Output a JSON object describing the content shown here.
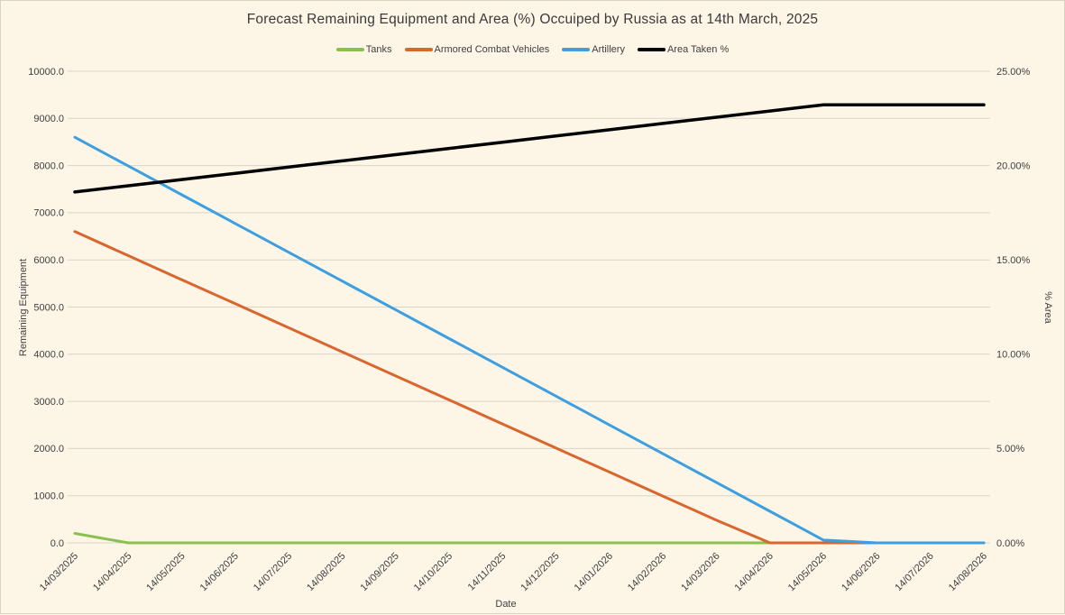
{
  "title": "Forecast Remaining Equipment and Area (%) Occuiped by Russia as at 14th March, 2025",
  "axes": {
    "left_label": "Remaining Equipment",
    "right_label": "% Area",
    "x_label": "Date"
  },
  "colors": {
    "background": "#FDF5E6",
    "gridline": "#D9D5CB",
    "text": "#404040",
    "tanks": "#88C14F",
    "armored_combat_vehicles": "#D9662E",
    "artillery": "#3D9FE0",
    "area_taken": "#000000"
  },
  "chart_data": {
    "type": "line",
    "title": "Forecast Remaining Equipment and Area (%) Occuiped by Russia as at 14th March, 2025",
    "xlabel": "Date",
    "legend_position": "top",
    "grid": true,
    "y_left": {
      "label": "Remaining Equipment",
      "min": 0,
      "max": 10000,
      "tick_step": 1000,
      "tick_format": "one_decimal"
    },
    "y_right": {
      "label": "% Area",
      "min": 0,
      "max": 25,
      "label_step": 5,
      "grid_step": 2.5,
      "tick_format": "percent_two_decimals"
    },
    "categories": [
      "14/03/2025",
      "14/04/2025",
      "14/05/2025",
      "14/06/2025",
      "14/07/2025",
      "14/08/2025",
      "14/09/2025",
      "14/10/2025",
      "14/11/2025",
      "14/12/2025",
      "14/01/2026",
      "14/02/2026",
      "14/03/2026",
      "14/04/2026",
      "14/05/2026",
      "14/06/2026",
      "14/07/2026",
      "14/08/2026"
    ],
    "series": [
      {
        "name": "Tanks",
        "color": "#88C14F",
        "axis": "left",
        "values": [
          200,
          0,
          0,
          0,
          0,
          0,
          0,
          0,
          0,
          0,
          0,
          0,
          0,
          0,
          0,
          0,
          0,
          0
        ]
      },
      {
        "name": "Armored Combat Vehicles",
        "color": "#D9662E",
        "axis": "left",
        "values": [
          6600,
          6090,
          5580,
          5070,
          4560,
          4050,
          3540,
          3030,
          2520,
          2010,
          1500,
          990,
          480,
          0,
          0,
          0,
          0,
          0
        ]
      },
      {
        "name": "Artillery",
        "color": "#3D9FE0",
        "axis": "left",
        "values": [
          8600,
          7990,
          7380,
          6770,
          6160,
          5550,
          4940,
          4330,
          3720,
          3110,
          2500,
          1890,
          1280,
          670,
          60,
          0,
          0,
          0
        ]
      },
      {
        "name": "Area Taken %",
        "color": "#000000",
        "axis": "right",
        "values": [
          18.6,
          18.93,
          19.26,
          19.59,
          19.92,
          20.25,
          20.58,
          20.91,
          21.24,
          21.57,
          21.9,
          22.23,
          22.56,
          22.89,
          23.22,
          23.22,
          23.22,
          23.22
        ]
      }
    ]
  }
}
